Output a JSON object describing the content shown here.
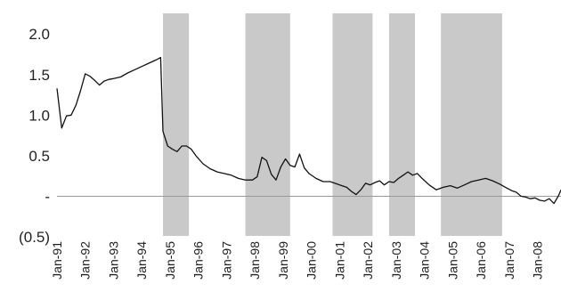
{
  "chart_data": {
    "type": "line",
    "title": "",
    "xlabel": "",
    "ylabel": "",
    "ylim": [
      -0.5,
      2.2
    ],
    "xlim": [
      "Jan-91",
      "Nov-08"
    ],
    "y_tick_labels": [
      {
        "value": 2.0,
        "label": "2.0"
      },
      {
        "value": 1.5,
        "label": "1.5"
      },
      {
        "value": 1.0,
        "label": "1.0"
      },
      {
        "value": 0.5,
        "label": "0.5"
      },
      {
        "value": 0.0,
        "label": "-"
      },
      {
        "value": -0.5,
        "label": "(0.5)"
      }
    ],
    "x_tick_labels": [
      "Jan-91",
      "Jan-92",
      "Jan-93",
      "Jan-94",
      "Jan-95",
      "Jan-96",
      "Jan-97",
      "Jan-98",
      "Jan-99",
      "Jan-00",
      "Jan-01",
      "Jan-02",
      "Jan-03",
      "Jan-04",
      "Jan-05",
      "Jan-06",
      "Jan-07",
      "Jan-08"
    ],
    "shaded_periods": [
      {
        "start": "1994-10",
        "end": "1995-09"
      },
      {
        "start": "1997-09",
        "end": "1999-04"
      },
      {
        "start": "2000-10",
        "end": "2002-03"
      },
      {
        "start": "2002-10",
        "end": "2003-09"
      },
      {
        "start": "2004-08",
        "end": "2006-10"
      }
    ],
    "series": [
      {
        "color": "#111111",
        "points": [
          [
            "1991-01",
            1.33
          ],
          [
            "1991-03",
            0.84
          ],
          [
            "1991-05",
            0.99
          ],
          [
            "1991-07",
            1.0
          ],
          [
            "1991-09",
            1.12
          ],
          [
            "1991-11",
            1.3
          ],
          [
            "1992-01",
            1.51
          ],
          [
            "1992-03",
            1.48
          ],
          [
            "1992-05",
            1.43
          ],
          [
            "1992-07",
            1.37
          ],
          [
            "1992-09",
            1.42
          ],
          [
            "1992-11",
            1.44
          ],
          [
            "1993-01",
            1.45
          ],
          [
            "1993-04",
            1.47
          ],
          [
            "1993-07",
            1.52
          ],
          [
            "1993-10",
            1.56
          ],
          [
            "1994-01",
            1.6
          ],
          [
            "1994-04",
            1.64
          ],
          [
            "1994-07",
            1.68
          ],
          [
            "1994-09",
            1.71
          ],
          [
            "1994-10",
            0.8
          ],
          [
            "1994-12",
            0.62
          ],
          [
            "1995-02",
            0.58
          ],
          [
            "1995-04",
            0.55
          ],
          [
            "1995-06",
            0.62
          ],
          [
            "1995-08",
            0.62
          ],
          [
            "1995-10",
            0.58
          ],
          [
            "1995-12",
            0.5
          ],
          [
            "1996-03",
            0.4
          ],
          [
            "1996-06",
            0.34
          ],
          [
            "1996-09",
            0.3
          ],
          [
            "1996-12",
            0.28
          ],
          [
            "1997-03",
            0.26
          ],
          [
            "1997-06",
            0.22
          ],
          [
            "1997-09",
            0.2
          ],
          [
            "1997-12",
            0.2
          ],
          [
            "1998-02",
            0.24
          ],
          [
            "1998-04",
            0.48
          ],
          [
            "1998-06",
            0.44
          ],
          [
            "1998-08",
            0.27
          ],
          [
            "1998-10",
            0.2
          ],
          [
            "1998-12",
            0.36
          ],
          [
            "1999-02",
            0.46
          ],
          [
            "1999-04",
            0.38
          ],
          [
            "1999-06",
            0.36
          ],
          [
            "1999-08",
            0.52
          ],
          [
            "1999-10",
            0.35
          ],
          [
            "1999-12",
            0.28
          ],
          [
            "2000-03",
            0.22
          ],
          [
            "2000-06",
            0.18
          ],
          [
            "2000-09",
            0.18
          ],
          [
            "2000-12",
            0.15
          ],
          [
            "2001-02",
            0.13
          ],
          [
            "2001-04",
            0.11
          ],
          [
            "2001-06",
            0.06
          ],
          [
            "2001-08",
            0.02
          ],
          [
            "2001-10",
            0.08
          ],
          [
            "2001-12",
            0.16
          ],
          [
            "2002-02",
            0.14
          ],
          [
            "2002-04",
            0.17
          ],
          [
            "2002-06",
            0.19
          ],
          [
            "2002-08",
            0.14
          ],
          [
            "2002-10",
            0.18
          ],
          [
            "2002-12",
            0.17
          ],
          [
            "2003-02",
            0.22
          ],
          [
            "2003-04",
            0.26
          ],
          [
            "2003-06",
            0.3
          ],
          [
            "2003-08",
            0.26
          ],
          [
            "2003-10",
            0.28
          ],
          [
            "2003-12",
            0.22
          ],
          [
            "2004-03",
            0.14
          ],
          [
            "2004-06",
            0.08
          ],
          [
            "2004-09",
            0.11
          ],
          [
            "2004-12",
            0.13
          ],
          [
            "2005-03",
            0.1
          ],
          [
            "2005-06",
            0.14
          ],
          [
            "2005-09",
            0.18
          ],
          [
            "2005-12",
            0.2
          ],
          [
            "2006-03",
            0.22
          ],
          [
            "2006-06",
            0.19
          ],
          [
            "2006-09",
            0.15
          ],
          [
            "2006-12",
            0.1
          ],
          [
            "2007-02",
            0.07
          ],
          [
            "2007-04",
            0.05
          ],
          [
            "2007-06",
            0.0
          ],
          [
            "2007-08",
            -0.01
          ],
          [
            "2007-10",
            -0.03
          ],
          [
            "2007-12",
            -0.02
          ],
          [
            "2008-02",
            -0.05
          ],
          [
            "2008-04",
            -0.06
          ],
          [
            "2008-06",
            -0.03
          ],
          [
            "2008-08",
            -0.09
          ],
          [
            "2008-10",
            0.01
          ],
          [
            "2008-11",
            0.08
          ]
        ]
      }
    ],
    "grid": false,
    "legend": "none"
  }
}
